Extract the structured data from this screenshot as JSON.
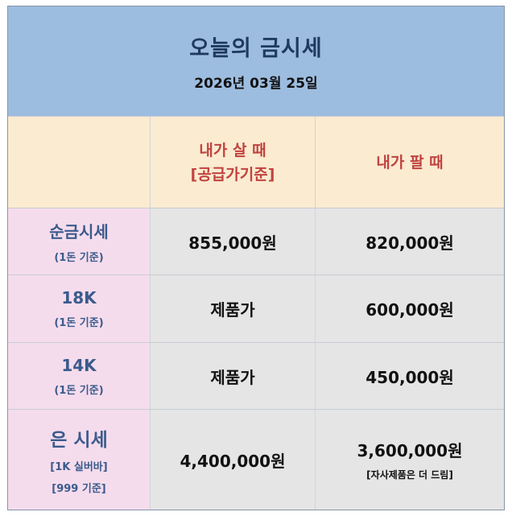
{
  "header": {
    "title": "오늘의 금시세",
    "date": "2026년 03월 25일"
  },
  "columns": {
    "buy": [
      "내가 살 때",
      "[공급가기준]"
    ],
    "sell": "내가 팔 때"
  },
  "rows": [
    {
      "label": "순금시세",
      "sub": [
        "(1돈 기준)"
      ],
      "buy": "855,000원",
      "sell": "820,000원"
    },
    {
      "label": "18K",
      "sub": [
        "(1돈 기준)"
      ],
      "buy": "제품가",
      "sell": "600,000원"
    },
    {
      "label": "14K",
      "sub": [
        "(1돈 기준)"
      ],
      "buy": "제품가",
      "sell": "450,000원"
    },
    {
      "label": "은 시세",
      "sub": [
        "[1K 실버바]",
        "[999 기준]"
      ],
      "buy": "4,400,000원",
      "sell": "3,600,000원",
      "sell_note": "[자사제품은 더 드림]"
    }
  ],
  "colors": {
    "header_bg": "#9dbde0",
    "column_header_bg": "#fbebd1",
    "label_bg": "#f5dced",
    "data_bg": "#e5e5e5",
    "accent_red": "#c0433f",
    "label_blue": "#3b5b8c"
  }
}
